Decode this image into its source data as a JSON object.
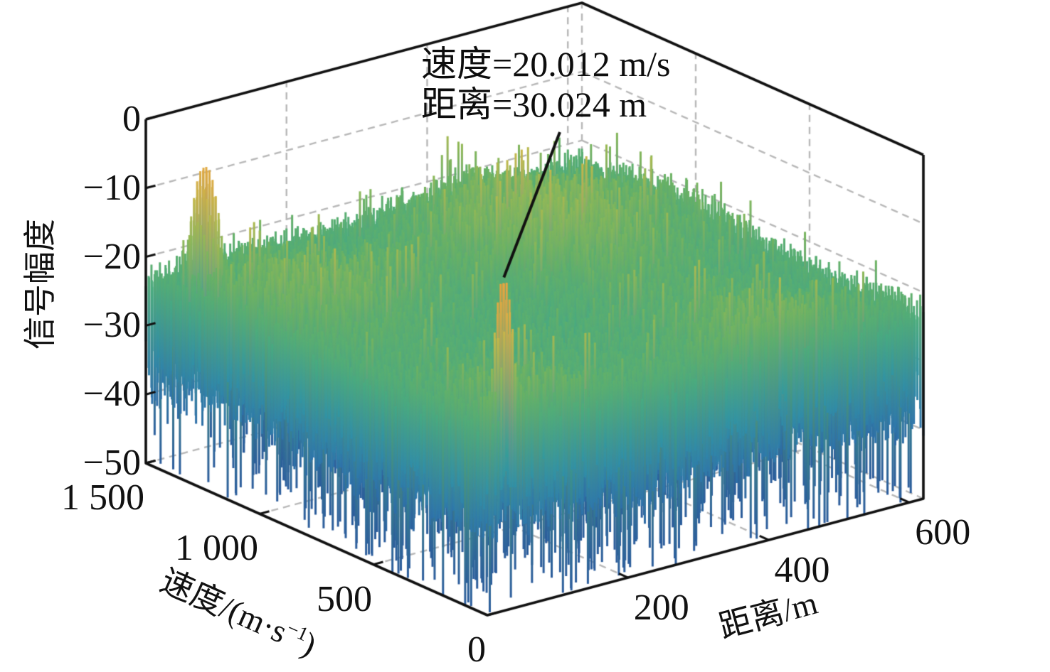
{
  "figure": {
    "background": "#ffffff",
    "annotation": {
      "line1": "速度=20.012 m/s",
      "line2": "距离=30.024 m"
    },
    "axes": {
      "z": {
        "label": "信号幅度",
        "ticks": [
          "0",
          "−10",
          "−20",
          "−30",
          "−40",
          "−50"
        ]
      },
      "velocity": {
        "label_base": "速度/(m·s",
        "label_sup": "−1",
        "label_close": ")",
        "ticks": [
          "0",
          "500",
          "1 000",
          "1 500"
        ]
      },
      "distance": {
        "label": "距离/m",
        "ticks": [
          "200",
          "400",
          "600"
        ]
      }
    }
  },
  "chart_data": {
    "type": "surface",
    "title": "",
    "xlabel": "距离/m",
    "ylabel": "速度/(m·s⁻¹)",
    "zlabel": "信号幅度",
    "x_range_m": [
      0,
      620
    ],
    "x_ticks": [
      200,
      400,
      600
    ],
    "y_range_mps": [
      0,
      1500
    ],
    "y_ticks": [
      0,
      500,
      1000,
      1500
    ],
    "z_range_db": [
      -50,
      0
    ],
    "z_ticks": [
      0,
      -10,
      -20,
      -30,
      -40,
      -50
    ],
    "grid": true,
    "grid_color": "#b8b8b8",
    "axis_color": "#111111",
    "peaks": [
      {
        "name": "target",
        "velocity_mps": 20.012,
        "distance_m": 30.024,
        "amplitude_db": -2,
        "halfwidth_v_mps": 40,
        "halfwidth_d_m": 15,
        "annotated": true
      },
      {
        "name": "secondary",
        "velocity_mps": 1330,
        "distance_m": 30,
        "amplitude_db": -5,
        "halfwidth_v_mps": 85,
        "halfwidth_d_m": 15,
        "annotated": false
      }
    ],
    "noise": {
      "floor_db": -25,
      "jitter_db": 3.5,
      "spike_probability": 0.055,
      "spike_extra_db": [
        8,
        24
      ],
      "whisker_probability": 0.035,
      "whisker_extra_db": [
        2.5,
        6.5
      ],
      "seed": 987654321
    },
    "annotation": {
      "lines": [
        "速度=20.012 m/s",
        "距离=30.024 m"
      ],
      "points_to": {
        "velocity_mps": 20.012,
        "distance_m": 30.024
      }
    },
    "colormap_stops": [
      [
        -50,
        "#2b5c9c"
      ],
      [
        -43,
        "#2e72ab"
      ],
      [
        -36,
        "#2f8fa9"
      ],
      [
        -29,
        "#35a295"
      ],
      [
        -24,
        "#4aac7e"
      ],
      [
        -19,
        "#68b264"
      ],
      [
        -15,
        "#93b955"
      ],
      [
        -11,
        "#bdba4b"
      ],
      [
        -7,
        "#dcae45"
      ],
      [
        -3,
        "#e9a23c"
      ],
      [
        0,
        "#efc063"
      ]
    ]
  }
}
